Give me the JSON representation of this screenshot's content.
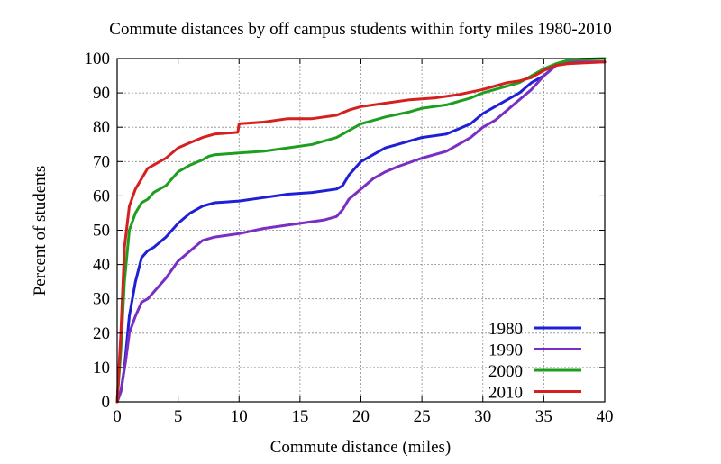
{
  "chart_data": {
    "type": "line",
    "title": "Commute distances by off campus students within forty miles 1980-2010",
    "xlabel": "Commute distance (miles)",
    "ylabel": "Percent of students",
    "xlim": [
      0,
      40
    ],
    "ylim": [
      0,
      100
    ],
    "xticks": [
      "0",
      "5",
      "10",
      "15",
      "20",
      "25",
      "30",
      "35",
      "40"
    ],
    "yticks": [
      "0",
      "10",
      "20",
      "30",
      "40",
      "50",
      "60",
      "70",
      "80",
      "90",
      "100"
    ],
    "grid": true,
    "legend_position": "bottom-right",
    "series": [
      {
        "name": "1980",
        "color": "#1f1fd6",
        "x": [
          0,
          0.3,
          0.6,
          1,
          1.5,
          2,
          2.5,
          3,
          4,
          5,
          6,
          7,
          8,
          10,
          12,
          14,
          16,
          18,
          18.5,
          19,
          20,
          21,
          22,
          23,
          25,
          27,
          28,
          29,
          30,
          31,
          32,
          33,
          34,
          35,
          36,
          37,
          38,
          40
        ],
        "y": [
          0,
          3,
          10,
          25,
          35,
          42,
          44,
          45,
          48,
          52,
          55,
          57,
          58,
          58.5,
          59.5,
          60.5,
          61,
          62,
          63,
          66,
          70,
          72,
          74,
          75,
          77,
          78,
          79.5,
          81,
          84,
          86,
          88,
          90,
          93,
          95,
          98,
          99,
          99,
          99
        ]
      },
      {
        "name": "1990",
        "color": "#7a2fc2",
        "x": [
          0,
          0.3,
          0.7,
          1,
          1.5,
          2,
          2.5,
          3,
          4,
          5,
          6,
          7,
          8,
          10,
          12,
          15,
          17,
          18,
          18.5,
          19,
          20,
          21,
          22,
          23,
          25,
          27,
          28,
          29,
          30,
          31,
          32,
          33,
          34,
          35,
          36,
          37,
          38,
          40
        ],
        "y": [
          0,
          3,
          12,
          20,
          25,
          29,
          30,
          32,
          36,
          41,
          44,
          47,
          48,
          49,
          50.5,
          52,
          53,
          54,
          56,
          59,
          62,
          65,
          67,
          68.5,
          71,
          73,
          75,
          77,
          80,
          82,
          85,
          88,
          91,
          95,
          98,
          99,
          99,
          99
        ]
      },
      {
        "name": "2000",
        "color": "#1e9e1e",
        "x": [
          0,
          0.3,
          0.6,
          1,
          1.5,
          2,
          2.5,
          3,
          4,
          5,
          6,
          7,
          7.5,
          8,
          10,
          12,
          14,
          16,
          17,
          18,
          19,
          20,
          22,
          24,
          25,
          27,
          28,
          29,
          30,
          31,
          32,
          33,
          34,
          35,
          36,
          37,
          38,
          40
        ],
        "y": [
          0,
          15,
          35,
          50,
          55,
          58,
          59,
          61,
          63,
          67,
          69,
          70.5,
          71.5,
          72,
          72.5,
          73,
          74,
          75,
          76,
          77,
          79,
          81,
          83,
          84.5,
          85.5,
          86.5,
          87.5,
          88.5,
          90,
          91,
          92,
          93,
          95,
          97,
          98.5,
          99.5,
          99.8,
          100
        ]
      },
      {
        "name": "2010",
        "color": "#d61f1f",
        "x": [
          0,
          0.3,
          0.6,
          1,
          1.5,
          2,
          2.5,
          3,
          4,
          5,
          6,
          7,
          8,
          9.9,
          10,
          12,
          14,
          16,
          18,
          19,
          20,
          22,
          24,
          26,
          28,
          30,
          31,
          32,
          33,
          34,
          35,
          36,
          37,
          38,
          40
        ],
        "y": [
          0,
          20,
          45,
          57,
          62,
          65,
          68,
          69,
          71,
          74,
          75.5,
          77,
          78,
          78.5,
          81,
          81.5,
          82.5,
          82.5,
          83.5,
          85,
          86,
          87,
          88,
          88.5,
          89.5,
          91,
          92,
          93,
          93.5,
          94.5,
          96.5,
          98,
          98.5,
          98.7,
          99
        ]
      }
    ]
  }
}
